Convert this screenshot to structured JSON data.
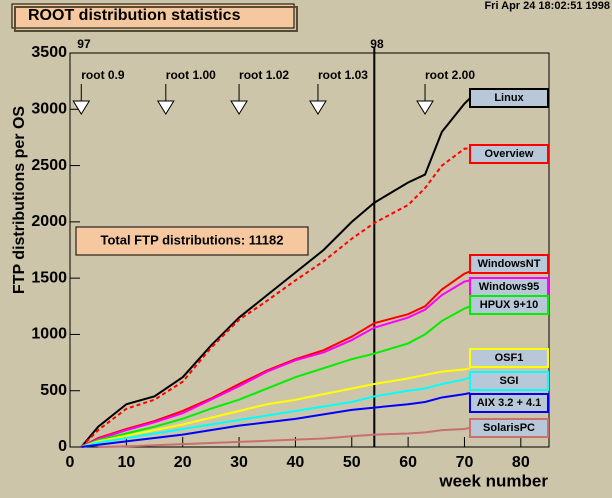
{
  "chart_data": {
    "type": "line",
    "title": "ROOT distribution statistics",
    "timestamp": "Fri Apr 24 18:02:51 1998",
    "total_box": "Total FTP distributions: 11182",
    "x_label": "week number",
    "y_label": "FTP distributions per OS",
    "xlim": [
      0,
      85
    ],
    "ylim": [
      0,
      3500
    ],
    "xticks": [
      0,
      10,
      20,
      30,
      40,
      50,
      60,
      70,
      80
    ],
    "yticks": [
      0,
      500,
      1000,
      1500,
      2000,
      2500,
      3000,
      3500
    ],
    "releases": [
      {
        "label": "root 0.9",
        "x": 2
      },
      {
        "label": "root 1.00",
        "x": 17
      },
      {
        "label": "root 1.02",
        "x": 30
      },
      {
        "label": "root 1.03",
        "x": 44
      },
      {
        "label": "root 2.00",
        "x": 63
      }
    ],
    "year_marks": [
      {
        "label": "97",
        "x": 2
      },
      {
        "label": "98",
        "x": 54
      }
    ],
    "x": [
      2,
      5,
      10,
      15,
      20,
      25,
      30,
      35,
      40,
      45,
      50,
      54,
      60,
      63,
      66,
      70,
      71
    ],
    "series": [
      {
        "name": "Linux",
        "color": "#000000",
        "values": [
          0,
          180,
          380,
          450,
          620,
          900,
          1150,
          1350,
          1550,
          1750,
          2000,
          2170,
          2350,
          2420,
          2800,
          3050,
          3100
        ]
      },
      {
        "name": "Overview",
        "color": "#ff0000",
        "dashed": true,
        "values": [
          0,
          150,
          340,
          420,
          580,
          880,
          1130,
          1300,
          1480,
          1650,
          1850,
          1990,
          2150,
          2300,
          2500,
          2650,
          2650
        ]
      },
      {
        "name": "WindowsNT",
        "color": "#ff0000",
        "values": [
          0,
          80,
          160,
          230,
          320,
          430,
          560,
          680,
          780,
          860,
          980,
          1100,
          1180,
          1250,
          1400,
          1540,
          1560
        ]
      },
      {
        "name": "Windows95",
        "color": "#ff00ff",
        "values": [
          0,
          70,
          150,
          220,
          300,
          420,
          540,
          670,
          770,
          840,
          950,
          1060,
          1150,
          1220,
          1350,
          1470,
          1480
        ]
      },
      {
        "name": "HPUX 9+10",
        "color": "#00ee00",
        "values": [
          0,
          60,
          120,
          180,
          250,
          340,
          420,
          520,
          620,
          700,
          780,
          830,
          920,
          1000,
          1120,
          1230,
          1250
        ]
      },
      {
        "name": "OSF1",
        "color": "#ffff00",
        "values": [
          0,
          50,
          100,
          150,
          200,
          260,
          320,
          380,
          420,
          470,
          520,
          560,
          610,
          640,
          670,
          690,
          700
        ]
      },
      {
        "name": "SGI",
        "color": "#00ffff",
        "values": [
          0,
          40,
          80,
          120,
          160,
          200,
          240,
          280,
          320,
          360,
          400,
          450,
          500,
          520,
          560,
          600,
          620
        ]
      },
      {
        "name": "AIX 3.2 + 4.1",
        "color": "#0000ff",
        "values": [
          0,
          20,
          50,
          80,
          110,
          150,
          190,
          220,
          250,
          290,
          330,
          350,
          380,
          400,
          440,
          470,
          480
        ]
      },
      {
        "name": "SolarisPC",
        "color": "#c87070",
        "values": [
          null,
          0,
          5,
          15,
          25,
          35,
          45,
          55,
          65,
          75,
          95,
          110,
          120,
          130,
          150,
          160,
          170
        ]
      }
    ]
  }
}
